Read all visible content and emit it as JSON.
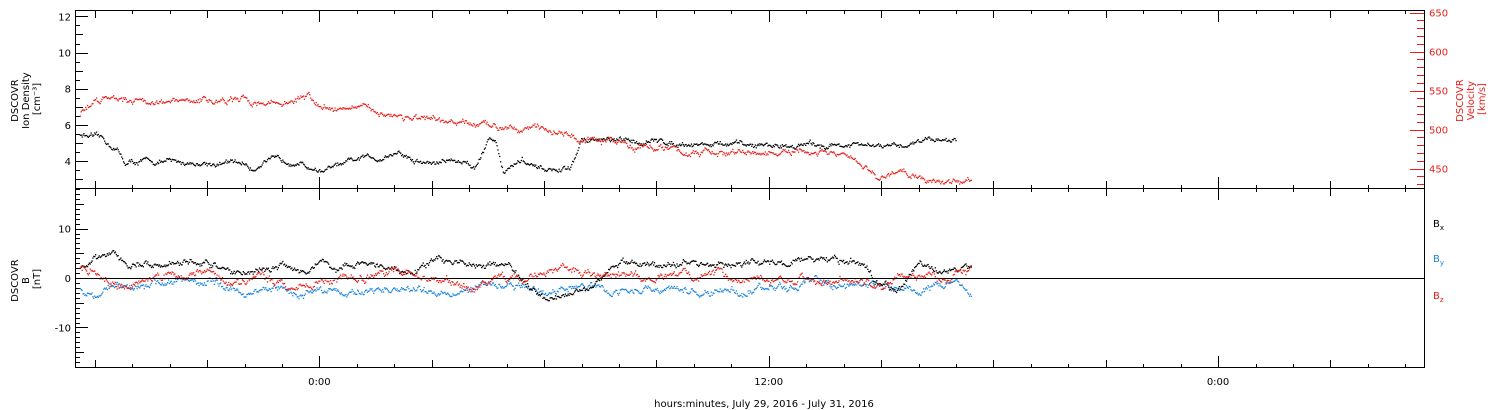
{
  "figure": {
    "xlabel": "hours:minutes, July 29, 2016 - July 31, 2016",
    "x_ticks": [
      "0:00",
      "12:00",
      "0:00"
    ]
  },
  "panels": {
    "top": {
      "left_axis_title": [
        "DSCOVR",
        "Ion Density",
        "[cm⁻³]"
      ],
      "right_axis_title": [
        "DSCOVR",
        "Velocity",
        "[km/s]"
      ],
      "left_ticks": [
        "4",
        "6",
        "8",
        "10",
        "12"
      ],
      "right_ticks": [
        "450",
        "500",
        "550",
        "600",
        "650"
      ]
    },
    "bottom": {
      "left_axis_title": [
        "DSCOVR",
        "B",
        "[nT]"
      ],
      "left_ticks": [
        "-10",
        "0",
        "10"
      ],
      "legend": {
        "bx": {
          "base": "B",
          "sub": "x"
        },
        "by": {
          "base": "B",
          "sub": "y"
        },
        "bz": {
          "base": "B",
          "sub": "z"
        }
      }
    }
  },
  "colors": {
    "density": "#000000",
    "velocity": "#e8201a",
    "bx": "#000000",
    "by": "#1a86e0",
    "bz": "#e8201a"
  },
  "chart_data": [
    {
      "type": "scatter",
      "x_unit": "hours since 2016-07-30 00:00",
      "xlim": [
        -6.5,
        29.5
      ],
      "ylim": [
        2.5,
        12.3
      ],
      "y2lim": [
        425,
        652
      ],
      "series": [
        {
          "name": "Ion Density",
          "axis": "left",
          "x": [
            -6.4,
            -5.8,
            -5.4,
            -5.2,
            -4.8,
            -3,
            -2,
            -1.8,
            -1.5,
            -1,
            -0.7,
            -0.3,
            0,
            0.6,
            1.2,
            1.6,
            2.0,
            2.2,
            2.5,
            3.0,
            3.5,
            4.2,
            4.5,
            4.7,
            4.9,
            5.2,
            5.4,
            5.7,
            6.0,
            6.3,
            6.7,
            7.0,
            7.3,
            8.0,
            9.0,
            10.0,
            11.0,
            12.0,
            13.0,
            14.0,
            15.0,
            15.5,
            16.0,
            16.5,
            17.0
          ],
          "y": [
            5.5,
            5.2,
            4.6,
            3.9,
            4.0,
            3.9,
            3.9,
            3.5,
            4.1,
            4.0,
            4.1,
            3.7,
            3.5,
            3.8,
            4.2,
            4.2,
            4.5,
            4.4,
            4.0,
            3.9,
            4.1,
            3.8,
            5.3,
            5.2,
            3.5,
            3.8,
            4.1,
            3.6,
            3.5,
            3.5,
            3.6,
            5.2,
            5.2,
            5.1,
            5.1,
            5.0,
            4.9,
            4.9,
            4.9,
            4.9,
            4.8,
            4.8,
            5.2,
            5.3,
            5.2
          ]
        },
        {
          "name": "Velocity",
          "axis": "right",
          "x": [
            -6.4,
            -6.0,
            -5.5,
            -5.0,
            -4.0,
            -3.0,
            -2.0,
            -1.0,
            -0.5,
            -0.3,
            -0.2,
            0,
            1.0,
            2.0,
            3.0,
            4.0,
            4.5,
            5.0,
            5.5,
            6.0,
            6.5,
            7.0,
            7.5,
            8.0,
            8.5,
            9.0,
            10.0,
            11.0,
            12.0,
            13.0,
            14.0,
            14.5,
            15.0,
            15.5,
            16.0,
            16.5,
            17.0,
            17.4
          ],
          "y": [
            520,
            538,
            545,
            540,
            535,
            538,
            537,
            535,
            540,
            545,
            535,
            530,
            528,
            520,
            510,
            507,
            505,
            507,
            505,
            500,
            498,
            485,
            485,
            485,
            480,
            478,
            470,
            470,
            470,
            470,
            468,
            450,
            440,
            445,
            440,
            435,
            432,
            436
          ]
        }
      ]
    },
    {
      "type": "scatter",
      "x_unit": "hours since 2016-07-30 00:00",
      "xlim": [
        -6.5,
        29.5
      ],
      "ylim": [
        -18,
        18
      ],
      "series": [
        {
          "name": "Bx",
          "x": [
            -6.4,
            -6.0,
            -5.5,
            -5.0,
            -4.5,
            -4.0,
            -3.0,
            -2.5,
            -2.0,
            -1.0,
            -0.5,
            0,
            0.5,
            1.0,
            1.5,
            2.0,
            2.5,
            3.0,
            3.5,
            4.0,
            4.5,
            5.0,
            5.5,
            6.0,
            6.5,
            7.0,
            8.0,
            9.0,
            10.0,
            11.0,
            12.0,
            13.0,
            14.0,
            14.5,
            15.0,
            15.5,
            16.0,
            16.5,
            17.0,
            17.4
          ],
          "y": [
            2,
            4,
            4.5,
            2.5,
            3,
            3.5,
            3,
            1.5,
            1,
            3,
            1,
            3.5,
            2,
            3,
            2.5,
            1.5,
            1.5,
            3.5,
            3.5,
            3,
            3,
            2.5,
            -1,
            -3.5,
            -3,
            -2,
            3,
            3,
            3,
            3,
            3.2,
            3.5,
            3.3,
            2.5,
            -1.5,
            -2,
            2.5,
            2,
            1.5,
            2
          ]
        },
        {
          "name": "By",
          "x": [
            -6.4,
            -6.0,
            -5.5,
            -5.0,
            -4.5,
            -4.0,
            -3.0,
            -2.5,
            -2.0,
            -1.0,
            -0.5,
            0,
            1.0,
            2.0,
            3.0,
            4.0,
            5.0,
            6.0,
            7.0,
            8.0,
            9.0,
            10.0,
            11.0,
            12.0,
            13.0,
            14.0,
            14.5,
            15.0,
            15.5,
            16.0,
            16.5,
            17.0,
            17.4
          ],
          "y": [
            -2,
            -3,
            -2,
            -1.5,
            -1,
            -0.5,
            -0.5,
            -2,
            -3,
            -2,
            -3.5,
            -2,
            -3,
            -2,
            -3,
            -2,
            -1,
            -3,
            -1.5,
            -2.5,
            -2,
            -3,
            -2.5,
            -2,
            -1,
            -1.5,
            -1,
            -1,
            -2.5,
            -2,
            -1.5,
            -0.5,
            -2.5
          ]
        },
        {
          "name": "Bz",
          "x": [
            -6.4,
            -6.0,
            -5.5,
            -5.0,
            -4.5,
            -4.0,
            -3.5,
            -3.0,
            -2.5,
            -2.0,
            -1.5,
            -1.0,
            -0.5,
            0,
            1.0,
            2.0,
            3.0,
            4.0,
            5.0,
            6.0,
            6.5,
            7.0,
            8.0,
            9.0,
            10.0,
            11.0,
            12.0,
            13.0,
            14.0,
            14.5,
            15.0,
            15.5,
            16.0,
            16.5,
            17.0,
            17.4
          ],
          "y": [
            2,
            1.5,
            -1,
            -2,
            0.5,
            0.5,
            1,
            1,
            0.5,
            -1,
            0.5,
            -1,
            -1,
            -0.5,
            0.5,
            1,
            0,
            -2,
            0,
            1,
            2,
            0.5,
            1,
            0,
            0.5,
            0.5,
            0,
            0,
            -1,
            -1,
            -1.5,
            -0.5,
            1,
            0,
            1.5,
            1.5
          ]
        }
      ]
    }
  ]
}
